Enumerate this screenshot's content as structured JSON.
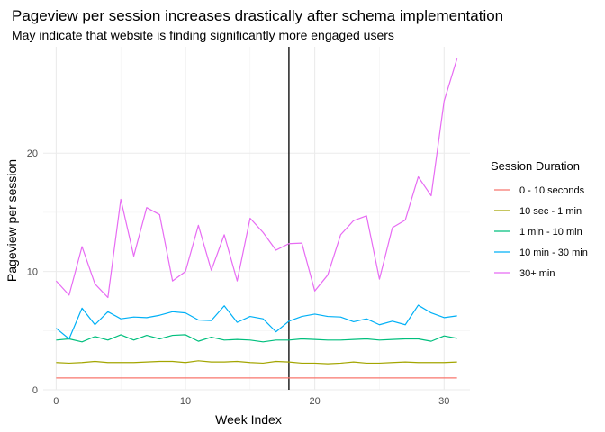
{
  "chart_data": {
    "type": "line",
    "title": "Pageview per session increases drastically after schema implementation",
    "subtitle": "May indicate that website is finding significantly more engaged users",
    "xlabel": "Week Index",
    "ylabel": "Pageview per session",
    "xlim": [
      -1,
      32
    ],
    "ylim": [
      0,
      29
    ],
    "x_ticks": [
      0,
      10,
      20,
      30
    ],
    "y_ticks": [
      0,
      10,
      20
    ],
    "grid": true,
    "vline_x": 18,
    "legend": {
      "title": "Session Duration",
      "position": "right"
    },
    "x": [
      0,
      1,
      2,
      3,
      4,
      5,
      6,
      7,
      8,
      9,
      10,
      11,
      12,
      13,
      14,
      15,
      16,
      17,
      18,
      19,
      20,
      21,
      22,
      23,
      24,
      25,
      26,
      27,
      28,
      29,
      30,
      31
    ],
    "series": [
      {
        "name": "0 - 10 seconds",
        "color": "#F8766D",
        "values": [
          1.0,
          1.0,
          1.0,
          1.0,
          1.0,
          1.0,
          1.0,
          1.0,
          1.0,
          1.0,
          1.0,
          1.0,
          1.0,
          1.0,
          1.0,
          1.0,
          1.0,
          1.0,
          1.0,
          1.0,
          1.0,
          1.0,
          1.0,
          1.0,
          1.0,
          1.0,
          1.0,
          1.0,
          1.0,
          1.0,
          1.0,
          1.0
        ]
      },
      {
        "name": "10 sec - 1 min",
        "color": "#A3A500",
        "values": [
          2.3,
          2.25,
          2.3,
          2.4,
          2.3,
          2.3,
          2.3,
          2.35,
          2.4,
          2.4,
          2.3,
          2.45,
          2.35,
          2.35,
          2.4,
          2.3,
          2.25,
          2.4,
          2.35,
          2.25,
          2.25,
          2.2,
          2.25,
          2.35,
          2.25,
          2.25,
          2.3,
          2.35,
          2.3,
          2.3,
          2.3,
          2.35
        ]
      },
      {
        "name": "1 min - 10 min",
        "color": "#00BF7D",
        "values": [
          4.2,
          4.3,
          4.05,
          4.5,
          4.2,
          4.65,
          4.2,
          4.6,
          4.3,
          4.6,
          4.65,
          4.1,
          4.45,
          4.2,
          4.25,
          4.2,
          4.05,
          4.2,
          4.2,
          4.3,
          4.25,
          4.2,
          4.2,
          4.25,
          4.3,
          4.2,
          4.25,
          4.3,
          4.3,
          4.1,
          4.55,
          4.35
        ]
      },
      {
        "name": "10 min - 30 min",
        "color": "#00B0F6",
        "values": [
          5.2,
          4.3,
          6.9,
          5.5,
          6.6,
          6.0,
          6.15,
          6.1,
          6.3,
          6.6,
          6.5,
          5.9,
          5.85,
          7.1,
          5.7,
          6.2,
          6.0,
          4.9,
          5.8,
          6.2,
          6.4,
          6.2,
          6.15,
          5.75,
          6.0,
          5.5,
          5.8,
          5.5,
          7.15,
          6.5,
          6.1,
          6.25
        ]
      },
      {
        "name": "30+ min",
        "color": "#E76BF3",
        "values": [
          9.2,
          8.0,
          12.1,
          8.95,
          7.8,
          16.1,
          11.3,
          15.4,
          14.8,
          9.2,
          10.0,
          13.9,
          10.1,
          13.1,
          9.2,
          14.5,
          13.3,
          11.8,
          12.35,
          12.4,
          8.35,
          9.7,
          13.1,
          14.3,
          14.7,
          9.35,
          13.7,
          14.35,
          18.0,
          16.4,
          24.4,
          28.0
        ]
      }
    ]
  }
}
